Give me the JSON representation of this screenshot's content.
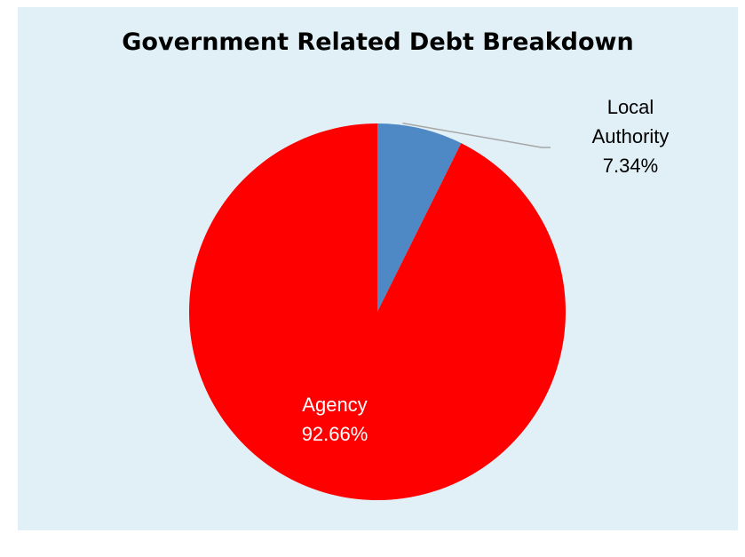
{
  "chart_data": {
    "type": "pie",
    "title": "Government Related Debt Breakdown",
    "slices": [
      {
        "label_lines": [
          "Local",
          "Authority"
        ],
        "value_label": "7.34%",
        "value": 7.34,
        "color": "#4e89c6"
      },
      {
        "label_lines": [
          "Agency"
        ],
        "value_label": "92.66%",
        "value": 92.66,
        "color": "#ff0000"
      }
    ],
    "start_angle_deg": 0,
    "direction": "clockwise",
    "legend": "none",
    "background_color": "#e0f0f6"
  }
}
